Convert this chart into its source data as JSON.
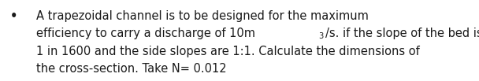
{
  "bullet": "•",
  "line1": "A trapezoidal channel is to be designed for the maximum",
  "line2_part1": "efficiency to carry a discharge of 10m",
  "line2_super": "3",
  "line2_part2": "/s. if the slope of the bed is",
  "line3": "1 in 1600 and the side slopes are 1:1. Calculate the dimensions of",
  "line4": "the cross-section. Take N= 0.012",
  "font_family": "DejaVu Sans",
  "font_size": 10.5,
  "text_color": "#1a1a1a",
  "background_color": "#ffffff",
  "fig_width": 6.08,
  "fig_height": 1.03,
  "dpi": 100
}
